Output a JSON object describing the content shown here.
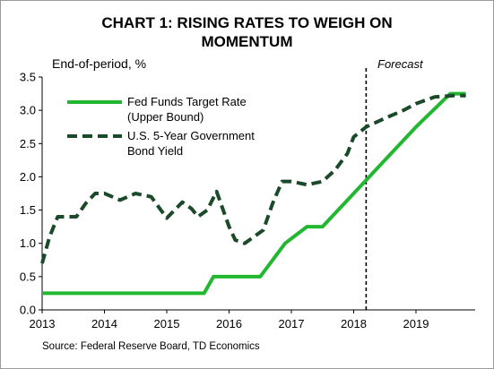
{
  "title_line1": "CHART 1: RISING RATES TO WEIGH ON",
  "title_line2": "MOMENTUM",
  "source": "Source: Federal Reserve Board, TD Economics",
  "chart_data": {
    "type": "line",
    "ylabel": "End-of-period, %",
    "ylim": [
      0,
      3.5
    ],
    "yticks": [
      "0.0",
      "0.5",
      "1.0",
      "1.5",
      "2.0",
      "2.5",
      "3.0",
      "3.5"
    ],
    "xlim": [
      2013.0,
      2019.95
    ],
    "xticks": [
      "2013",
      "2014",
      "2015",
      "2016",
      "2017",
      "2018",
      "2019"
    ],
    "grid": false,
    "legend_position": "top-left",
    "forecast_label": "Forecast",
    "forecast_x": 2018.2,
    "colors": {
      "fed_funds": "#22b731",
      "bond_yield": "#1a4a2a"
    },
    "series": [
      {
        "name": "Fed Funds Target Rate",
        "name_line2": "(Upper Bound)",
        "style": "solid",
        "x": [
          2013.0,
          2015.6,
          2015.75,
          2016.5,
          2016.9,
          2017.25,
          2017.5,
          2018.0,
          2018.5,
          2019.0,
          2019.55,
          2019.8
        ],
        "y": [
          0.25,
          0.25,
          0.5,
          0.5,
          1.0,
          1.25,
          1.25,
          1.75,
          2.25,
          2.75,
          3.25,
          3.25
        ]
      },
      {
        "name": "U.S. 5-Year Government",
        "name_line2": "Bond Yield",
        "style": "dashed",
        "x": [
          2013.0,
          2013.12,
          2013.25,
          2013.4,
          2013.55,
          2013.7,
          2013.85,
          2014.0,
          2014.25,
          2014.5,
          2014.75,
          2015.0,
          2015.25,
          2015.4,
          2015.5,
          2015.65,
          2015.8,
          2016.0,
          2016.1,
          2016.25,
          2016.4,
          2016.55,
          2016.7,
          2016.85,
          2017.0,
          2017.25,
          2017.5,
          2017.7,
          2017.9,
          2018.0,
          2018.2,
          2018.5,
          2018.8,
          2019.0,
          2019.3,
          2019.6,
          2019.8
        ],
        "y": [
          0.7,
          1.1,
          1.4,
          1.4,
          1.4,
          1.6,
          1.75,
          1.75,
          1.65,
          1.75,
          1.7,
          1.38,
          1.62,
          1.52,
          1.4,
          1.5,
          1.78,
          1.25,
          1.05,
          1.0,
          1.1,
          1.2,
          1.6,
          1.93,
          1.93,
          1.88,
          1.93,
          2.1,
          2.35,
          2.6,
          2.75,
          2.88,
          3.0,
          3.1,
          3.2,
          3.22,
          3.22
        ]
      }
    ]
  }
}
